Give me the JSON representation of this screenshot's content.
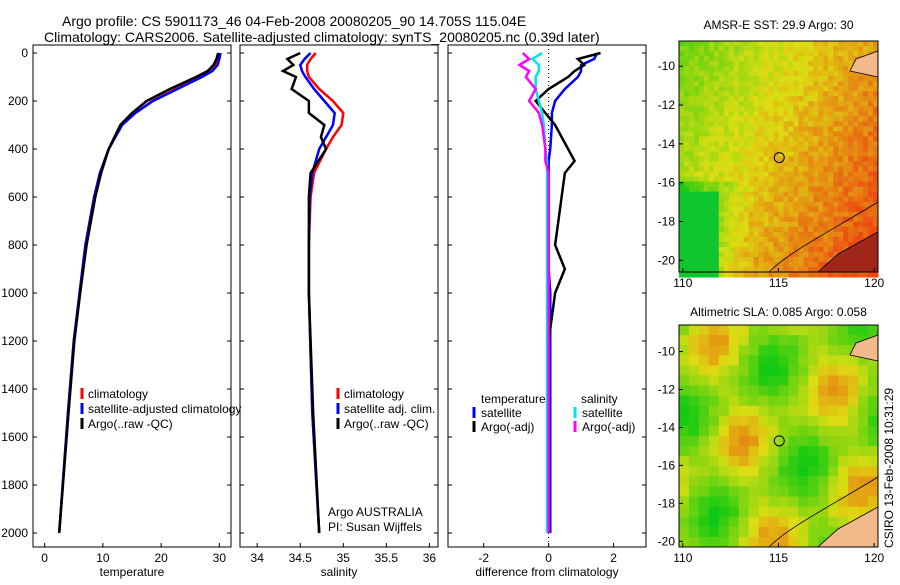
{
  "title_line1": "Argo profile: CS 5901173_46 04-Feb-2008 20080205_90 14.705S 115.04E",
  "title_line2": "Climatology: CARS2006. Satellite-adjusted climatology: synTS_20080205.nc (0.39d later)",
  "side_label": "CSIRO 13-Feb-2008 10:31:29",
  "colors": {
    "clim": "#ff0000",
    "sat": "#0000ff",
    "argo": "#000000",
    "sal_sat": "#00e5e5",
    "sal_argo": "#ff00ff"
  },
  "chart_data": [
    {
      "type": "line",
      "xlabel": "temperature",
      "ylabel": "",
      "xlim": [
        -2,
        32
      ],
      "ylim": [
        2000,
        0
      ],
      "xticks": [
        0,
        10,
        20,
        30
      ],
      "yticks": [
        0,
        200,
        400,
        600,
        800,
        1000,
        1200,
        1400,
        1600,
        1800,
        2000
      ],
      "legend": [
        "climatology",
        "satellite-adjusted climatology",
        "Argo(..raw -QC)"
      ],
      "legend_placement": "lower-right",
      "depth": [
        0,
        25,
        50,
        75,
        100,
        150,
        200,
        250,
        300,
        400,
        500,
        600,
        800,
        1000,
        1200,
        1500,
        2000
      ],
      "series": [
        {
          "name": "climatology",
          "color_key": "clim",
          "values": [
            30,
            29.8,
            29.4,
            28.5,
            26.8,
            22.5,
            18.5,
            15.5,
            13.2,
            11,
            9.5,
            8.5,
            7,
            6,
            5,
            4,
            2.5
          ]
        },
        {
          "name": "satellite-adjusted climatology",
          "color_key": "sat",
          "values": [
            30.2,
            30,
            29.7,
            28.8,
            27,
            22.8,
            18.6,
            15.6,
            13.3,
            11,
            9.5,
            8.5,
            7,
            6,
            5,
            4,
            2.5
          ]
        },
        {
          "name": "Argo(..raw -QC)",
          "color_key": "argo",
          "values": [
            29.8,
            29.5,
            29,
            28,
            26,
            21.5,
            17.5,
            15,
            13,
            11,
            9.7,
            8.7,
            7.2,
            6.1,
            5.1,
            4.1,
            2.5
          ]
        }
      ]
    },
    {
      "type": "line",
      "xlabel": "salinity",
      "xlim": [
        33.8,
        36.1
      ],
      "ylim": [
        2000,
        0
      ],
      "xticks": [
        34,
        34.5,
        35,
        35.5,
        36
      ],
      "yticks": [
        0,
        200,
        400,
        600,
        800,
        1000,
        1200,
        1400,
        1600,
        1800,
        2000
      ],
      "legend": [
        "climatology",
        "satellite adj. clim.",
        "Argo(..raw -QC)"
      ],
      "legend_placement": "lower-right",
      "annotation": [
        "Argo AUSTRALIA",
        "PI: Susan Wijffels"
      ],
      "depth": [
        0,
        25,
        50,
        75,
        100,
        150,
        200,
        250,
        300,
        350,
        400,
        500,
        600,
        800,
        1000,
        1500,
        2000
      ],
      "series": [
        {
          "name": "climatology",
          "color_key": "clim",
          "values": [
            34.68,
            34.62,
            34.58,
            34.58,
            34.6,
            34.72,
            34.88,
            35.0,
            34.98,
            34.88,
            34.8,
            34.66,
            34.62,
            34.6,
            34.6,
            34.64,
            34.72
          ]
        },
        {
          "name": "satellite adj. clim.",
          "color_key": "sat",
          "values": [
            34.62,
            34.55,
            34.5,
            34.52,
            34.56,
            34.66,
            34.78,
            34.9,
            34.88,
            34.8,
            34.72,
            34.64,
            34.61,
            34.6,
            34.6,
            34.64,
            34.72
          ]
        },
        {
          "name": "Argo(..raw -QC)",
          "color_key": "argo",
          "values": [
            34.5,
            34.35,
            34.42,
            34.3,
            34.45,
            34.4,
            34.6,
            34.6,
            34.78,
            34.74,
            34.8,
            34.62,
            34.6,
            34.6,
            34.6,
            34.65,
            34.72
          ]
        }
      ]
    },
    {
      "type": "line",
      "xlabel": "difference from climatology",
      "xlim": [
        -3.1,
        3
      ],
      "ylim": [
        2000,
        0
      ],
      "xticks": [
        -2,
        0,
        2
      ],
      "yticks": [
        0,
        200,
        400,
        600,
        800,
        1000,
        1200,
        1400,
        1600,
        1800,
        2000
      ],
      "legend_headers": [
        "temperature",
        "salinity"
      ],
      "legend": [
        "satellite",
        "Argo(-adj)",
        "satellite",
        "Argo(-adj)"
      ],
      "depth": [
        0,
        25,
        50,
        75,
        100,
        150,
        200,
        250,
        300,
        400,
        450,
        500,
        600,
        800,
        900,
        1000,
        1200,
        1500,
        2000
      ],
      "series": [
        {
          "name": "temperature satellite",
          "color_key": "sat",
          "values": [
            1.5,
            1.4,
            1.0,
            1.0,
            0.9,
            0.5,
            0.2,
            0.1,
            0.1,
            0.05,
            0,
            0,
            0,
            0,
            0,
            0.05,
            0.05,
            0.05,
            0.05
          ]
        },
        {
          "name": "temperature Argo(-adj)",
          "color_key": "argo",
          "values": [
            1.6,
            0.9,
            1.1,
            0.8,
            0.6,
            0,
            -0.4,
            -0.1,
            0.2,
            0.6,
            0.8,
            0.5,
            0.4,
            0.2,
            0.5,
            0.2,
            0,
            0,
            0
          ]
        },
        {
          "name": "salinity satellite",
          "color_key": "sal_sat",
          "values": [
            -0.2,
            -0.5,
            -0.3,
            -0.3,
            -0.4,
            -0.4,
            -0.3,
            -0.2,
            -0.15,
            -0.1,
            -0.05,
            -0.05,
            -0.05,
            -0.05,
            -0.05,
            -0.05,
            -0.05,
            -0.05,
            -0.05
          ]
        },
        {
          "name": "salinity Argo(-adj)",
          "color_key": "sal_argo",
          "values": [
            -0.8,
            -0.6,
            -0.9,
            -0.6,
            -0.7,
            -0.4,
            -0.6,
            -0.3,
            -0.2,
            -0.1,
            -0.1,
            0,
            0,
            0,
            0,
            0,
            0,
            0,
            0
          ]
        }
      ]
    },
    {
      "type": "heatmap",
      "title": "AMSR-E SST: 29.9 Argo: 30",
      "xlim": [
        109.8,
        120.2
      ],
      "ylim": [
        -20.6,
        -8.7
      ],
      "xticks": [
        110,
        115,
        120
      ],
      "yticks": [
        -10,
        -12,
        -14,
        -16,
        -18,
        -20
      ],
      "marker": [
        115.04,
        -14.705
      ]
    },
    {
      "type": "heatmap",
      "title": "Altimetric SLA: 0.085 Argo: 0.058",
      "xlim": [
        109.8,
        120.2
      ],
      "ylim": [
        -20.3,
        -8.6
      ],
      "xticks": [
        110,
        115,
        120
      ],
      "yticks": [
        -10,
        -12,
        -14,
        -16,
        -18,
        -20
      ],
      "marker": [
        115.04,
        -14.705
      ]
    }
  ]
}
